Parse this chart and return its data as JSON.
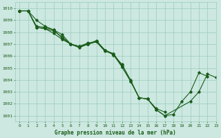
{
  "title": "Graphe pression niveau de la mer (hPa)",
  "bg_color": "#cce8e0",
  "line_color": "#1a5c1a",
  "grid_color": "#99ccbb",
  "xlim": [
    -0.5,
    23
  ],
  "ylim": [
    1000.5,
    1010.5
  ],
  "yticks": [
    1001,
    1002,
    1003,
    1004,
    1005,
    1006,
    1007,
    1008,
    1009,
    1010
  ],
  "xticks": [
    0,
    1,
    2,
    3,
    4,
    5,
    6,
    7,
    8,
    9,
    10,
    11,
    12,
    13,
    14,
    15,
    16,
    17,
    18,
    19,
    20,
    21,
    22,
    23
  ],
  "series": [
    {
      "x": [
        0,
        1,
        2,
        3,
        4,
        5,
        6,
        7,
        8,
        9,
        10,
        11,
        12,
        13,
        14,
        15,
        16,
        17,
        18,
        19,
        20,
        21,
        22
      ],
      "y": [
        1009.8,
        1009.8,
        1009.0,
        1008.5,
        1008.2,
        1007.5,
        1007.0,
        1006.8,
        1007.0,
        1007.2,
        1006.4,
        1006.2,
        1005.1,
        1003.9,
        1002.5,
        1002.4,
        1001.5,
        1001.0,
        1001.1,
        1002.2,
        1003.0,
        1004.6,
        1004.3
      ]
    },
    {
      "x": [
        0,
        1,
        2,
        3,
        4,
        5,
        6,
        7,
        8,
        9,
        10,
        11,
        12,
        13,
        14,
        15,
        16,
        17
      ],
      "y": [
        1009.8,
        1009.8,
        1008.4,
        1008.3,
        1007.9,
        1007.4,
        1007.0,
        1006.8,
        1007.0,
        1007.2,
        1006.5,
        1006.1,
        1005.3,
        1004.0,
        1002.5,
        1002.4,
        1001.6,
        1001.3
      ]
    },
    {
      "x": [
        0,
        1,
        2,
        3,
        4,
        5,
        6,
        7,
        8,
        9,
        10,
        11,
        12
      ],
      "y": [
        1009.8,
        1009.8,
        1008.5,
        1008.4,
        1008.2,
        1007.8,
        1007.0,
        1006.7,
        1007.0,
        1007.3,
        1006.5,
        1006.2,
        1005.2
      ]
    },
    {
      "x": [
        0,
        1,
        2,
        3,
        4,
        5,
        6,
        7,
        8,
        9,
        10,
        11,
        12,
        13,
        14,
        15,
        16,
        17,
        20,
        21,
        22,
        23
      ],
      "y": [
        1009.8,
        1009.8,
        1008.4,
        1008.3,
        1008.1,
        1007.6,
        1007.0,
        1006.8,
        1007.1,
        1007.2,
        1006.5,
        1006.1,
        1005.1,
        1003.9,
        1002.5,
        1002.4,
        1001.5,
        1001.0,
        1002.2,
        1003.0,
        1004.5,
        1004.2
      ]
    }
  ]
}
